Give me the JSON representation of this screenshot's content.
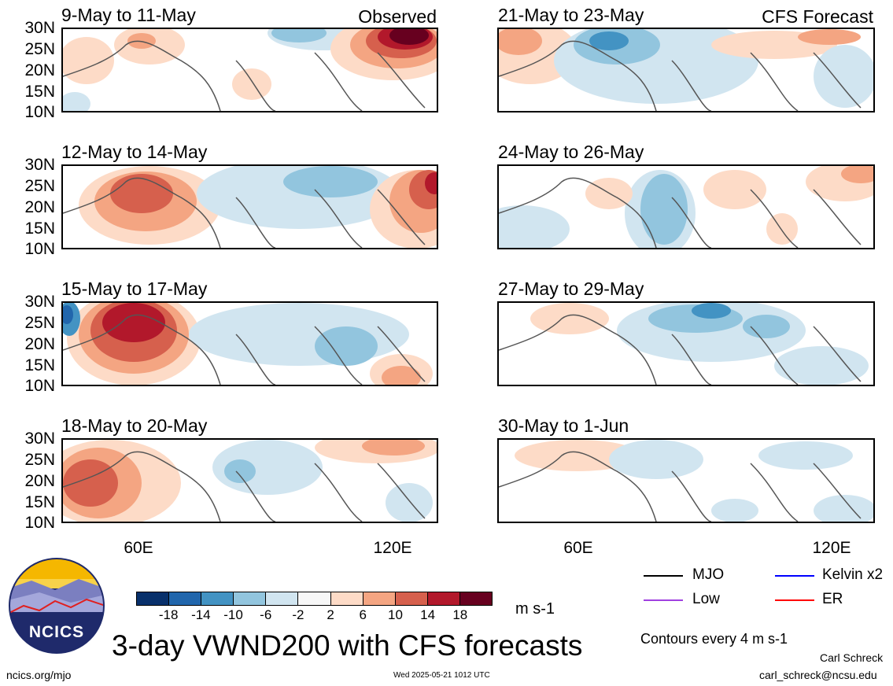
{
  "header": {
    "observed_label": "Observed",
    "forecast_label": "CFS Forecast"
  },
  "observed_panels": [
    {
      "title": "9-May to 11-May"
    },
    {
      "title": "12-May to 14-May"
    },
    {
      "title": "15-May to 17-May"
    },
    {
      "title": "18-May to 20-May"
    }
  ],
  "forecast_panels": [
    {
      "title": "21-May to 23-May"
    },
    {
      "title": "24-May to 26-May"
    },
    {
      "title": "27-May to 29-May"
    },
    {
      "title": "30-May to 1-Jun"
    }
  ],
  "y_ticks": [
    "30N",
    "25N",
    "20N",
    "15N",
    "10N"
  ],
  "x_ticks": [
    "60E",
    "120E"
  ],
  "colorbar": {
    "labels": [
      "-18",
      "-14",
      "-10",
      "-6",
      "-2",
      "2",
      "6",
      "10",
      "14",
      "18"
    ],
    "colors": [
      "#08306b",
      "#2166ac",
      "#4393c3",
      "#92c5de",
      "#d1e5f0",
      "#f7f7f7",
      "#fddbc7",
      "#f4a582",
      "#d6604d",
      "#b2182b",
      "#67001f"
    ],
    "units": "m s-1"
  },
  "legend": {
    "items": [
      {
        "label": "MJO",
        "color": "#000000"
      },
      {
        "label": "Kelvin x2",
        "color": "#0000ff"
      },
      {
        "label": "Low",
        "color": "#a040e0"
      },
      {
        "label": "ER",
        "color": "#ff0000"
      }
    ],
    "contours_note": "Contours every 4 m s-1"
  },
  "footer": {
    "title": "3-day VWND200 with CFS forecasts",
    "logo_text": "NCICS",
    "site": "ncics.org/mjo",
    "timestamp": "Wed 2025-05-21 1012 UTC",
    "author": "Carl Schreck",
    "email": "carl_schreck@ncsu.edu"
  }
}
